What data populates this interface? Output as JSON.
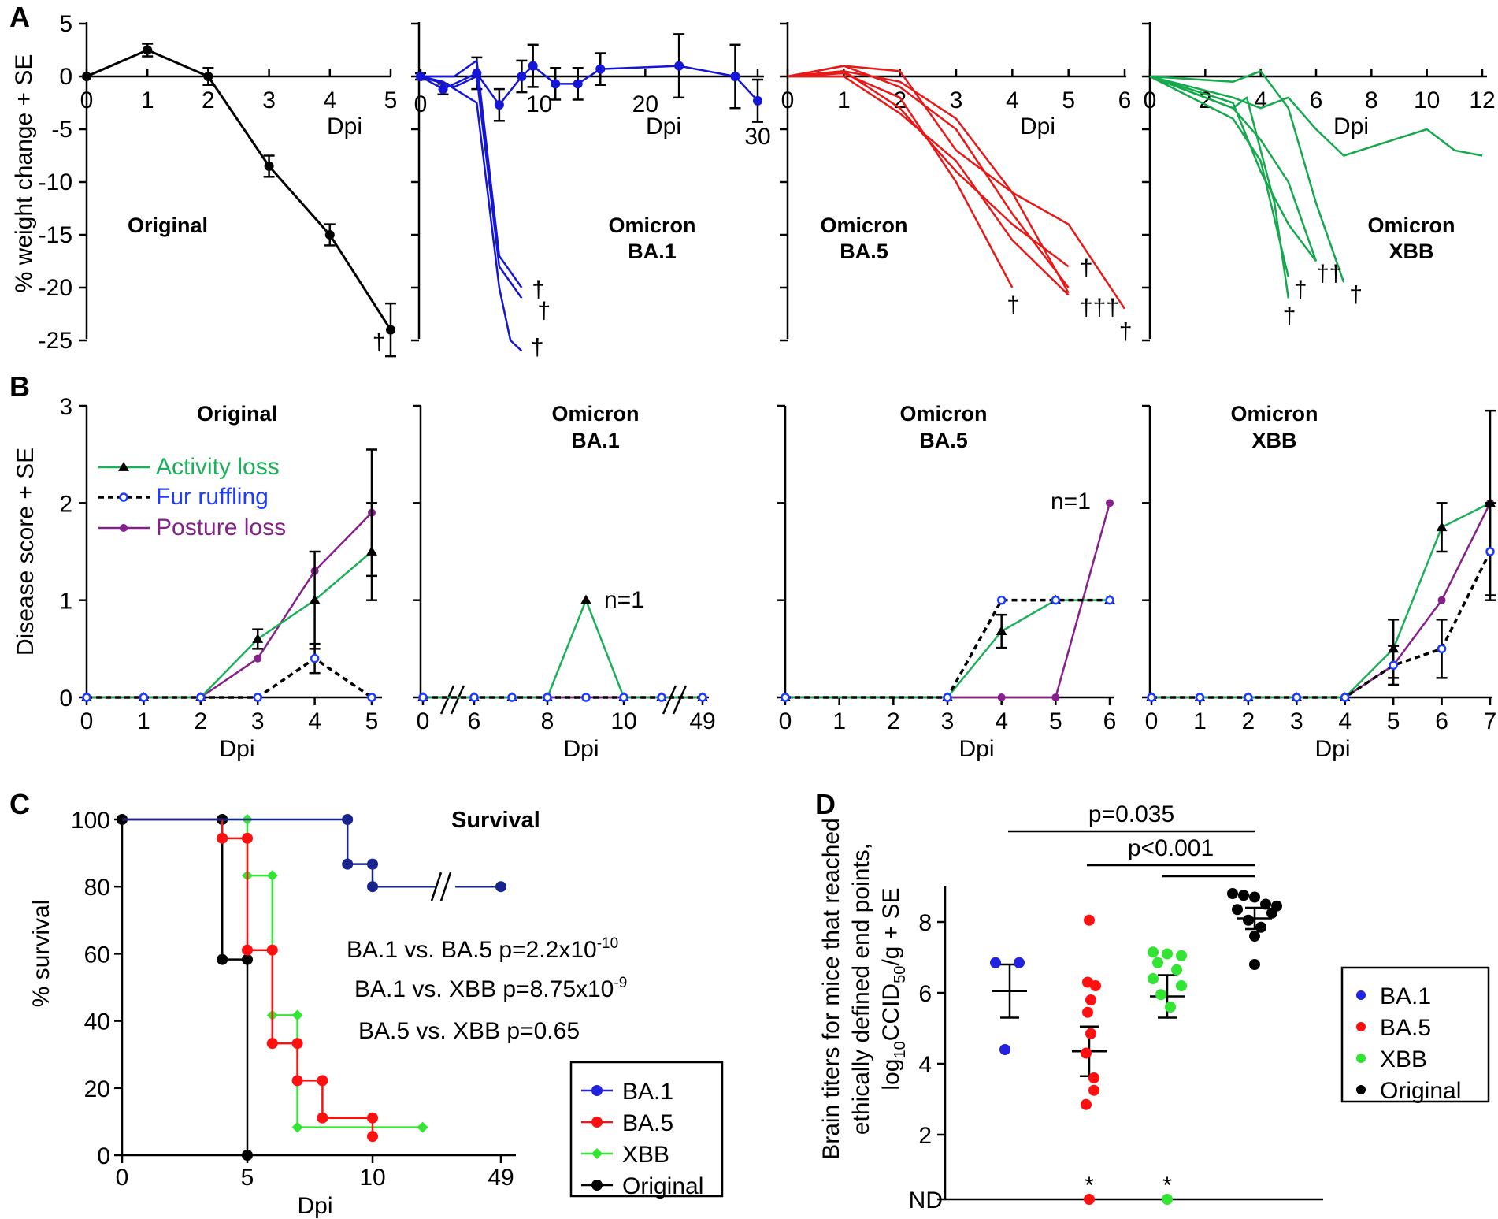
{
  "colors": {
    "black": "#000000",
    "blue": "#1515d6",
    "red": "#e81818",
    "green": "#16a84d",
    "activity": "#1db05a",
    "fur": "#000000",
    "furmark": "#1e3cff",
    "posture": "#86208a",
    "ba1_surv": "#17248c",
    "ba1_marker": "#2222e0",
    "xbb_bright": "#33e533",
    "ba5_d": "#ff1010"
  },
  "chart_data": [
    {
      "id": "A-original",
      "panel_label": "A",
      "type": "line",
      "title": "Original",
      "ylabel": "% weight change + SE",
      "xlabel": "Dpi",
      "ylim": [
        -27,
        5
      ],
      "xticks": [
        0,
        1,
        2,
        3,
        4,
        5
      ],
      "yticks": [
        5,
        0,
        -5,
        -10,
        -15,
        -20,
        -25
      ],
      "series": [
        {
          "name": "Original",
          "x": [
            0,
            1,
            2,
            3,
            4,
            5
          ],
          "y": [
            0,
            2.5,
            0,
            -8.5,
            -15,
            -24
          ],
          "se": [
            0.3,
            0.6,
            0.8,
            1,
            1,
            2.5
          ]
        }
      ],
      "deaths": [
        {
          "x": 4.7,
          "y": -25,
          "label": "†"
        }
      ]
    },
    {
      "id": "A-ba1",
      "type": "line",
      "title": [
        "Omicron",
        "BA.1"
      ],
      "xlabel": "Dpi",
      "xticks": [
        0,
        10,
        20,
        30
      ],
      "series": [
        {
          "name": "mean",
          "x": [
            0,
            2,
            5,
            7,
            9,
            10,
            12,
            14,
            16,
            23,
            28,
            30
          ],
          "y": [
            0,
            -1.2,
            0.3,
            -2.7,
            0,
            1,
            -0.7,
            -0.7,
            0.7,
            1,
            0,
            -2.3
          ],
          "se": [
            0.3,
            0.5,
            1.5,
            1.5,
            1.5,
            2,
            1.5,
            1.5,
            1.5,
            3,
            3,
            2
          ]
        },
        {
          "name": "ind1",
          "x": [
            0,
            3,
            5,
            7,
            9
          ],
          "y": [
            0,
            0,
            1.5,
            -17,
            -20
          ]
        },
        {
          "name": "ind2",
          "x": [
            0,
            3,
            5,
            7,
            9
          ],
          "y": [
            0,
            -1,
            0,
            -18,
            -21
          ]
        },
        {
          "name": "ind3",
          "x": [
            0,
            2,
            5,
            7,
            8,
            9
          ],
          "y": [
            0,
            -0.5,
            -2.5,
            -20,
            -25,
            -26
          ]
        }
      ],
      "deaths": [
        {
          "x": 9.9,
          "y": -20,
          "label": "†"
        },
        {
          "x": 10.4,
          "y": -22,
          "label": "†"
        },
        {
          "x": 9.8,
          "y": -25.5,
          "label": "†"
        }
      ]
    },
    {
      "id": "A-ba5",
      "type": "line",
      "title": [
        "Omicron",
        "BA.5"
      ],
      "xlabel": "Dpi",
      "xticks": [
        0,
        1,
        2,
        3,
        4,
        5,
        6
      ],
      "series": [
        {
          "name": "ind1",
          "x": [
            0,
            1,
            2,
            3,
            4,
            5
          ],
          "y": [
            0,
            0.5,
            -3,
            -9,
            -14,
            -18
          ]
        },
        {
          "name": "ind2",
          "x": [
            0,
            1,
            2,
            3,
            4,
            5
          ],
          "y": [
            0,
            1,
            -1,
            -5,
            -13,
            -20
          ]
        },
        {
          "name": "ind3",
          "x": [
            0,
            1,
            2,
            3,
            4,
            5
          ],
          "y": [
            0,
            0.5,
            -0.5,
            -4,
            -11,
            -20.5
          ]
        },
        {
          "name": "ind4",
          "x": [
            0,
            1,
            2,
            3,
            4
          ],
          "y": [
            0,
            0.3,
            -2,
            -10,
            -20
          ]
        },
        {
          "name": "ind5",
          "x": [
            0,
            1,
            2,
            3,
            4,
            5,
            6
          ],
          "y": [
            0,
            1,
            0.5,
            -7,
            -11,
            -14,
            -22
          ]
        },
        {
          "name": "ind6",
          "x": [
            0,
            1,
            2,
            3,
            4,
            5
          ],
          "y": [
            0,
            0,
            -3.5,
            -8,
            -15.5,
            -20.7
          ]
        }
      ],
      "deaths": [
        {
          "x": 5.2,
          "y": -18,
          "label": "†"
        },
        {
          "x": 3.9,
          "y": -21.5,
          "label": "†"
        },
        {
          "x": 5.2,
          "y": -21.7,
          "label": "†††"
        },
        {
          "x": 5.9,
          "y": -24,
          "label": "†"
        }
      ]
    },
    {
      "id": "A-xbb",
      "type": "line",
      "title": [
        "Omicron",
        "XBB"
      ],
      "xlabel": "Dpi",
      "xticks": [
        0,
        2,
        4,
        6,
        8,
        10,
        12
      ],
      "series": [
        {
          "name": "ind1",
          "x": [
            0,
            3,
            4,
            5,
            6,
            7,
            10,
            11,
            12
          ],
          "y": [
            0,
            -2,
            -3,
            -2,
            -5,
            -7.5,
            -5,
            -7,
            -7.5
          ]
        },
        {
          "name": "ind2",
          "x": [
            0,
            3,
            4,
            5,
            6,
            7
          ],
          "y": [
            0,
            -0.5,
            0.5,
            -3,
            -12,
            -19.5
          ]
        },
        {
          "name": "ind3",
          "x": [
            0,
            3,
            4,
            5,
            6
          ],
          "y": [
            0,
            -3,
            -6,
            -10,
            -17.5
          ]
        },
        {
          "name": "ind4",
          "x": [
            0,
            3,
            4,
            5
          ],
          "y": [
            0,
            -4,
            -8,
            -19
          ]
        },
        {
          "name": "ind5",
          "x": [
            0,
            3,
            4,
            5,
            6
          ],
          "y": [
            0,
            -2.5,
            -9,
            -14,
            -17.5
          ]
        },
        {
          "name": "ind6",
          "x": [
            0,
            3,
            3.5,
            4.5,
            5
          ],
          "y": [
            0,
            -3,
            -2,
            -12,
            -21
          ]
        }
      ],
      "deaths": [
        {
          "x": 5.2,
          "y": -20,
          "label": "†"
        },
        {
          "x": 6.0,
          "y": -18.5,
          "label": "††"
        },
        {
          "x": 7.2,
          "y": -20.5,
          "label": "†"
        },
        {
          "x": 4.8,
          "y": -22.5,
          "label": "†"
        }
      ]
    },
    {
      "id": "B-original",
      "panel_label": "B",
      "type": "line",
      "title": "Original",
      "ylabel": "Disease score + SE",
      "xlabel": "Dpi",
      "ylim": [
        0,
        3
      ],
      "xticks": [
        0,
        1,
        2,
        3,
        4,
        5
      ],
      "yticks": [
        0,
        1,
        2,
        3
      ],
      "legend": [
        "Activity loss",
        "Fur ruffling",
        "Posture loss"
      ],
      "series": [
        {
          "name": "Activity loss",
          "x": [
            0,
            1,
            2,
            3,
            4,
            5
          ],
          "y": [
            0,
            0,
            0,
            0.6,
            1,
            1.5
          ],
          "se": [
            0,
            0,
            0,
            0.1,
            0.5,
            0.5
          ]
        },
        {
          "name": "Fur ruffling",
          "x": [
            0,
            1,
            2,
            3,
            4,
            5
          ],
          "y": [
            0,
            0,
            0,
            0,
            0.4,
            0
          ],
          "se": [
            0,
            0,
            0,
            0,
            0.15,
            0
          ]
        },
        {
          "name": "Posture loss",
          "x": [
            0,
            1,
            2,
            3,
            4,
            5
          ],
          "y": [
            0,
            0,
            0,
            0.4,
            1.3,
            1.9
          ],
          "se": [
            0,
            0,
            0,
            0,
            0,
            0.65
          ]
        }
      ]
    },
    {
      "id": "B-ba1",
      "type": "line",
      "title": [
        "Omicron",
        "BA.1"
      ],
      "xlabel": "Dpi",
      "xticks": [
        "0",
        "6",
        "8",
        "10",
        "49"
      ],
      "note": "n=1",
      "series": [
        {
          "name": "Activity loss",
          "x": [
            "0",
            "6",
            "7",
            "8",
            "9",
            "10",
            "11",
            "49"
          ],
          "y": [
            0,
            0,
            0,
            0,
            1,
            0,
            0,
            0
          ]
        },
        {
          "name": "Fur ruffling",
          "x": [
            "0",
            "6",
            "7",
            "8",
            "9",
            "10",
            "11",
            "49"
          ],
          "y": [
            0,
            0,
            0,
            0,
            0,
            0,
            0,
            0
          ]
        },
        {
          "name": "Posture loss",
          "x": [
            "0",
            "6",
            "7",
            "8",
            "9",
            "10",
            "11",
            "49"
          ],
          "y": [
            0,
            0,
            0,
            0,
            0,
            0,
            0,
            0
          ]
        }
      ]
    },
    {
      "id": "B-ba5",
      "type": "line",
      "title": [
        "Omicron",
        "BA.5"
      ],
      "xlabel": "Dpi",
      "xticks": [
        0,
        1,
        2,
        3,
        4,
        5,
        6
      ],
      "note": "n=1",
      "series": [
        {
          "name": "Activity loss",
          "x": [
            0,
            3,
            4,
            5,
            6
          ],
          "y": [
            0,
            0,
            0.68,
            1,
            1
          ],
          "se": [
            0,
            0,
            0.17,
            0,
            0
          ]
        },
        {
          "name": "Fur ruffling",
          "x": [
            0,
            3,
            4,
            5,
            6
          ],
          "y": [
            0,
            0,
            1,
            1,
            1
          ]
        },
        {
          "name": "Posture loss",
          "x": [
            0,
            3,
            4,
            5,
            6
          ],
          "y": [
            0,
            0,
            0,
            0,
            2
          ]
        }
      ]
    },
    {
      "id": "B-xbb",
      "type": "line",
      "title": [
        "Omicron",
        "XBB"
      ],
      "xlabel": "Dpi",
      "xticks": [
        0,
        1,
        2,
        3,
        4,
        5,
        6,
        7
      ],
      "series": [
        {
          "name": "Activity loss",
          "x": [
            0,
            1,
            2,
            3,
            4,
            5,
            6,
            7
          ],
          "y": [
            0,
            0,
            0,
            0,
            0,
            0.5,
            1.75,
            2
          ],
          "se": [
            0,
            0,
            0,
            0,
            0,
            0.3,
            0.25,
            0.95
          ]
        },
        {
          "name": "Fur ruffling",
          "x": [
            0,
            1,
            2,
            3,
            4,
            5,
            6,
            7
          ],
          "y": [
            0,
            0,
            0,
            0,
            0,
            0.33,
            0.5,
            1.5
          ],
          "se": [
            0,
            0,
            0,
            0,
            0,
            0.2,
            0.3,
            0.5
          ]
        },
        {
          "name": "Posture loss",
          "x": [
            0,
            1,
            2,
            3,
            4,
            5,
            6,
            7
          ],
          "y": [
            0,
            0,
            0,
            0,
            0,
            0.33,
            1,
            2
          ]
        }
      ]
    },
    {
      "id": "C",
      "panel_label": "C",
      "type": "line",
      "title": "Survival",
      "ylabel": "% survival",
      "xlabel": "Dpi",
      "ylim": [
        0,
        100
      ],
      "xticks": [
        "0",
        "5",
        "10",
        "49"
      ],
      "yticks": [
        0,
        20,
        40,
        60,
        80,
        100
      ],
      "legend": [
        "BA.1",
        "BA.5",
        "XBB",
        "Original"
      ],
      "series": [
        {
          "name": "BA.1",
          "x": [
            0,
            9,
            10,
            10.1,
            10.2
          ],
          "y": [
            100,
            100,
            86.7,
            86.7,
            80
          ],
          "final": [
            49,
            80
          ]
        },
        {
          "name": "BA.5",
          "x": [
            0,
            4,
            5,
            6,
            7,
            8,
            10
          ],
          "y": [
            100,
            94.4,
            61.1,
            33.3,
            22.2,
            11.1,
            5.6
          ]
        },
        {
          "name": "XBB",
          "x": [
            0,
            5,
            6,
            7,
            12
          ],
          "y": [
            100,
            83.3,
            41.7,
            8.3,
            8.3
          ]
        },
        {
          "name": "Original",
          "x": [
            0,
            4,
            5
          ],
          "y": [
            100,
            58.3,
            0
          ]
        }
      ],
      "annotations": {
        "a1": "BA.1 vs. BA.5 p=2.2x10",
        "a1_exp": "-10",
        "a2": "BA.1 vs. XBB p=8.75x10",
        "a2_exp": "-9",
        "a3": "BA.5 vs. XBB p=0.65"
      }
    },
    {
      "id": "D",
      "panel_label": "D",
      "type": "scatter",
      "ylabel": [
        "Brain titers for mice that reached",
        "ethically defined end points,",
        "log10CCID50/g + SE"
      ],
      "yticks": [
        "ND",
        "2",
        "4",
        "6",
        "8"
      ],
      "legend": [
        "BA.1",
        "BA.5",
        "XBB",
        "Original"
      ],
      "groups": [
        {
          "name": "BA.1",
          "values": [
            6.85,
            6.85,
            4.4
          ],
          "mean": 6.05,
          "se": 0.75
        },
        {
          "name": "BA.5",
          "values": [
            8.05,
            6.3,
            6.2,
            5.8,
            5.45,
            4.85,
            4.3,
            3.6,
            3.25,
            2.85
          ],
          "nd": 1,
          "mean": 4.35,
          "se": 0.7
        },
        {
          "name": "XBB",
          "values": [
            7.15,
            7.1,
            7.05,
            6.85,
            6.65,
            6.4,
            6.2,
            5.95,
            5.6
          ],
          "nd": 1,
          "mean": 5.9,
          "se": 0.6
        },
        {
          "name": "Original",
          "values": [
            8.8,
            8.75,
            8.7,
            8.5,
            8.45,
            8.35,
            8.25,
            8.05,
            7.85,
            7.6,
            6.8
          ],
          "mean": 8.1,
          "se": 0.3
        }
      ],
      "comparisons": [
        {
          "label": "p=0.035",
          "from": "BA.1",
          "to": "Original"
        },
        {
          "label": "p<0.001",
          "from": "BA.5",
          "to": "Original"
        },
        {
          "label": "",
          "from": "XBB",
          "to": "Original"
        }
      ],
      "nd_mark": "*"
    }
  ]
}
